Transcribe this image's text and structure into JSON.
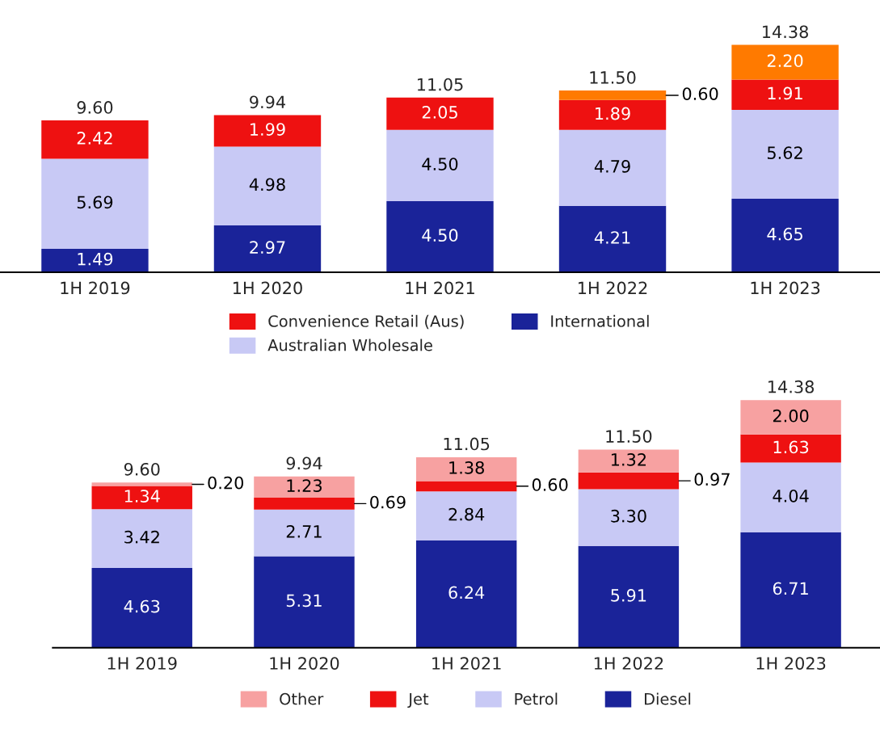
{
  "chart_data": [
    {
      "type": "bar",
      "stacked": true,
      "categories": [
        "1H 2019",
        "1H 2020",
        "1H 2021",
        "1H 2022",
        "1H 2023"
      ],
      "legend": "bottom",
      "grid": false,
      "series": [
        {
          "name": "International",
          "color": "#1a2399",
          "values": [
            1.49,
            2.97,
            4.5,
            4.21,
            4.65
          ],
          "value_labels": [
            "1.49",
            "2.97",
            "4.50",
            "4.21",
            "4.65"
          ]
        },
        {
          "name": "Australian Wholesale",
          "color": "#c8c9f5",
          "values": [
            5.69,
            4.98,
            4.5,
            4.79,
            5.62
          ],
          "value_labels": [
            "5.69",
            "4.98",
            "4.50",
            "4.79",
            "5.62"
          ]
        },
        {
          "name": "Convenience Retail (Aus)",
          "color": "#ee1111",
          "values": [
            2.42,
            1.99,
            2.05,
            1.89,
            1.91
          ],
          "value_labels": [
            "2.42",
            "1.99",
            "2.05",
            "1.89",
            "1.91"
          ]
        },
        {
          "color": "#ff7a00",
          "values": [
            null,
            null,
            null,
            0.6,
            2.2
          ],
          "value_labels": [
            null,
            null,
            null,
            "0.60",
            "2.20"
          ]
        }
      ],
      "totals": [
        "9.60",
        "9.94",
        "11.05",
        "11.50",
        "14.38"
      ]
    },
    {
      "type": "bar",
      "stacked": true,
      "categories": [
        "1H 2019",
        "1H 2020",
        "1H 2021",
        "1H 2022",
        "1H 2023"
      ],
      "legend": "bottom",
      "grid": false,
      "series": [
        {
          "name": "Diesel",
          "color": "#1a2399",
          "values": [
            4.63,
            5.31,
            6.24,
            5.91,
            6.71
          ],
          "value_labels": [
            "4.63",
            "5.31",
            "6.24",
            "5.91",
            "6.71"
          ]
        },
        {
          "name": "Petrol",
          "color": "#c8c9f5",
          "values": [
            3.42,
            2.71,
            2.84,
            3.3,
            4.04
          ],
          "value_labels": [
            "3.42",
            "2.71",
            "2.84",
            "3.30",
            "4.04"
          ]
        },
        {
          "name": "Jet",
          "color": "#ee1111",
          "values": [
            1.34,
            0.69,
            0.6,
            0.97,
            1.63
          ],
          "value_labels": [
            "1.34",
            "0.69",
            "0.60",
            "0.97",
            "1.63"
          ]
        },
        {
          "name": "Other",
          "color": "#f7a1a1",
          "values": [
            0.2,
            1.23,
            1.38,
            1.32,
            2.0
          ],
          "value_labels": [
            "0.20",
            "1.23",
            "1.38",
            "1.32",
            "2.00"
          ]
        }
      ],
      "totals": [
        "9.60",
        "9.94",
        "11.05",
        "11.50",
        "14.38"
      ]
    }
  ]
}
